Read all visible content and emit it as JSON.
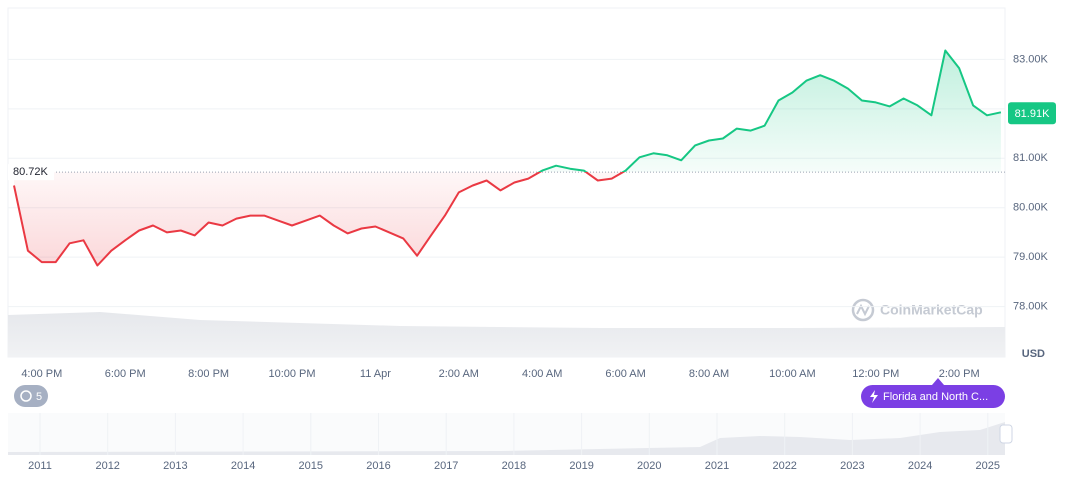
{
  "chart_data": {
    "type": "line",
    "categories": [
      null,
      null,
      "4:00 PM",
      null,
      null,
      null,
      null,
      null,
      "6:00 PM",
      null,
      null,
      null,
      null,
      null,
      "8:00 PM",
      null,
      null,
      null,
      null,
      null,
      "10:00 PM",
      null,
      null,
      null,
      null,
      null,
      "11 Apr",
      null,
      null,
      null,
      null,
      null,
      "2:00 AM",
      null,
      null,
      null,
      null,
      null,
      "4:00 AM",
      null,
      null,
      null,
      null,
      null,
      "6:00 AM",
      null,
      null,
      null,
      null,
      null,
      "8:00 AM",
      null,
      null,
      null,
      null,
      null,
      "10:00 AM",
      null,
      null,
      null,
      null,
      null,
      "12:00 PM",
      null,
      null,
      null,
      null,
      null,
      "2:00 PM",
      null,
      null,
      null
    ],
    "series": [
      {
        "name": "Price",
        "values": [
          80.45,
          79.13,
          78.9,
          78.9,
          79.28,
          79.34,
          78.83,
          79.13,
          79.34,
          79.54,
          79.64,
          79.5,
          79.54,
          79.44,
          79.7,
          79.64,
          79.78,
          79.84,
          79.84,
          79.74,
          79.64,
          79.74,
          79.84,
          79.64,
          79.48,
          79.58,
          79.62,
          79.5,
          79.38,
          79.03,
          79.44,
          79.84,
          80.31,
          80.45,
          80.55,
          80.35,
          80.51,
          80.59,
          80.75,
          80.85,
          80.79,
          80.75,
          80.55,
          80.59,
          80.75,
          81.02,
          81.1,
          81.06,
          80.96,
          81.26,
          81.36,
          81.4,
          81.6,
          81.56,
          81.66,
          82.17,
          82.33,
          82.57,
          82.68,
          82.57,
          82.41,
          82.17,
          82.13,
          82.05,
          82.21,
          82.07,
          81.87,
          83.18,
          82.82,
          82.07,
          81.87,
          81.93
        ]
      }
    ],
    "up_color": "#16c784",
    "down_color": "#ea3943",
    "reference": {
      "value": 80.72,
      "label": "80.72K"
    },
    "current": {
      "value": 81.91,
      "label": "81.91K"
    },
    "ylim": [
      77,
      84
    ],
    "yticks": [
      {
        "value": 78,
        "label": "78.00K"
      },
      {
        "value": 79,
        "label": "79.00K"
      },
      {
        "value": 80,
        "label": "80.00K"
      },
      {
        "value": 81,
        "label": "81.00K"
      },
      {
        "value": 82,
        "label": "82.00K"
      },
      {
        "value": 83,
        "label": "83.00K"
      }
    ],
    "grid": true,
    "currency": "USD",
    "watermark": "CoinMarketCap"
  },
  "navigator": {
    "years": [
      "2011",
      "2012",
      "2013",
      "2014",
      "2015",
      "2016",
      "2017",
      "2018",
      "2019",
      "2020",
      "2021",
      "2022",
      "2023",
      "2024",
      "2025"
    ],
    "history_badge": "5",
    "event_pill": "Florida and North C..."
  }
}
